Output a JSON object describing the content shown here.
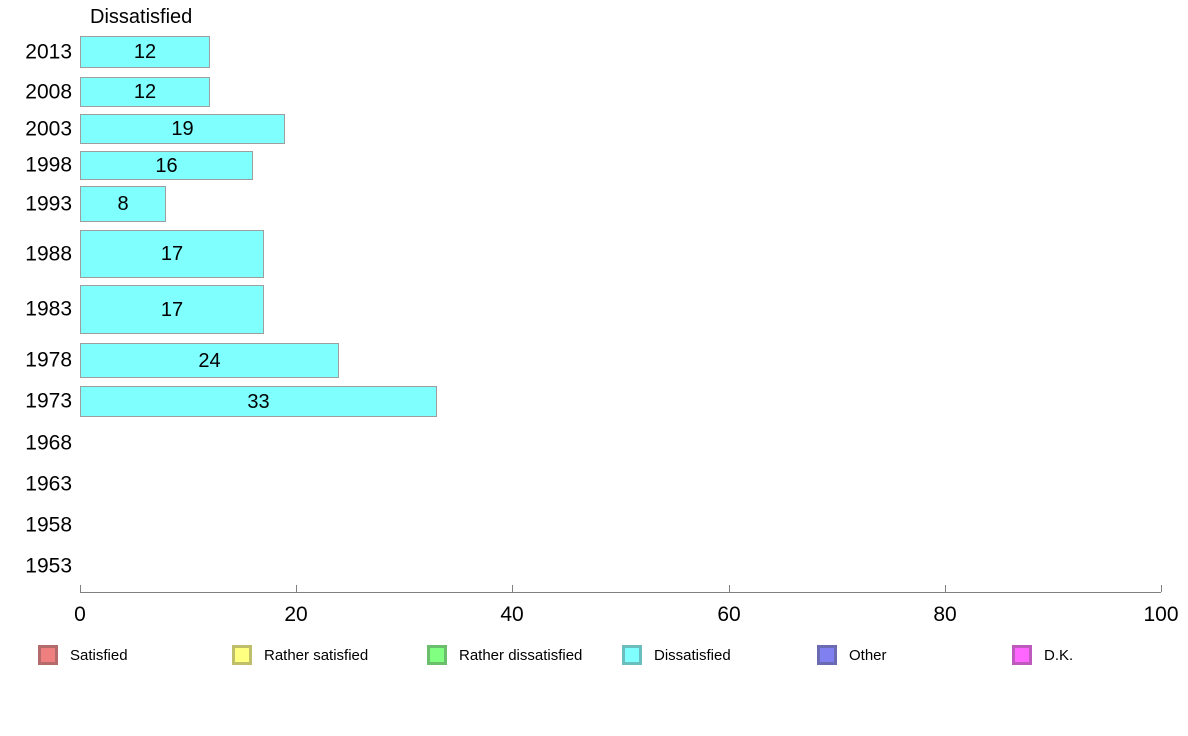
{
  "chart_data": {
    "type": "bar",
    "orientation": "horizontal",
    "title": "Dissatisfied",
    "categories": [
      "2013",
      "2008",
      "2003",
      "1998",
      "1993",
      "1988",
      "1983",
      "1978",
      "1973",
      "1968",
      "1963",
      "1958",
      "1953"
    ],
    "values": [
      12,
      12,
      19,
      16,
      8,
      17,
      17,
      24,
      33,
      null,
      null,
      null,
      null
    ],
    "xlabel": "",
    "ylabel": "",
    "xlim": [
      0,
      100
    ],
    "x_ticks": [
      0,
      20,
      40,
      60,
      80,
      100
    ],
    "grid": false,
    "bar_fill_color": "#80FFFF",
    "bar_border_color": "#9E9E9E",
    "value_labels_inside_bars": true,
    "legend_position": "bottom"
  },
  "legend": {
    "items": [
      {
        "label": "Satisfied",
        "color": "#F08080"
      },
      {
        "label": "Rather satisfied",
        "color": "#FFFF80"
      },
      {
        "label": "Rather dissatisfied",
        "color": "#80FF80"
      },
      {
        "label": "Dissatisfied",
        "color": "#80FFFF"
      },
      {
        "label": "Other",
        "color": "#8080F0"
      },
      {
        "label": "D.K.",
        "color": "#FF66FF"
      }
    ]
  }
}
